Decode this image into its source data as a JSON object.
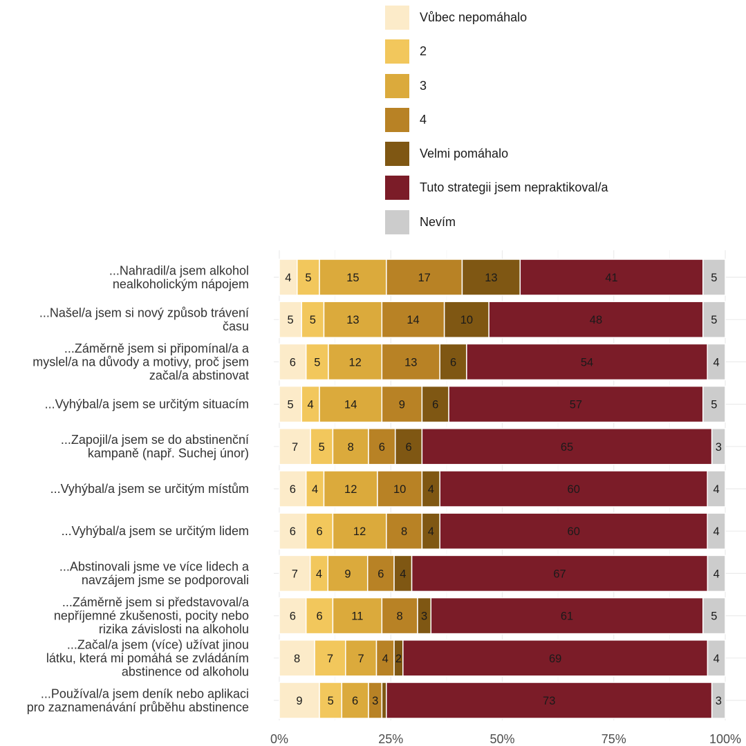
{
  "legend": [
    {
      "label": "Vůbec nepomáhalo",
      "color": "#fcebc9"
    },
    {
      "label": "2",
      "color": "#f2c75c"
    },
    {
      "label": "3",
      "color": "#dbaa3c"
    },
    {
      "label": "4",
      "color": "#b88225"
    },
    {
      "label": "Velmi pomáhalo",
      "color": "#7f5713"
    },
    {
      "label": "Tuto strategii jsem nepraktikoval/a",
      "color": "#7b1c28"
    },
    {
      "label": "Nevím",
      "color": "#cccccc"
    }
  ],
  "chart_data": {
    "type": "bar",
    "orientation": "horizontal",
    "stacked": true,
    "percent": true,
    "x_ticks": [
      "0%",
      "25%",
      "50%",
      "75%",
      "100%"
    ],
    "xlim": [
      0,
      100
    ],
    "grid": true,
    "legend_position": "top",
    "categories": [
      [
        "...Nahradil/a jsem alkohol",
        "nealkoholickým nápojem"
      ],
      [
        "...Našel/a jsem si nový způsob trávení",
        "času"
      ],
      [
        "...Záměrně jsem si připomínal/a a",
        "myslel/a na důvody a motivy, proč jsem",
        "začal/a abstinovat"
      ],
      [
        "...Vyhýbal/a jsem se určitým situacím"
      ],
      [
        "...Zapojil/a jsem se do abstinenční",
        "kampaně (např. Suchej únor)"
      ],
      [
        "...Vyhýbal/a jsem se určitým místům"
      ],
      [
        "...Vyhýbal/a jsem se určitým lidem"
      ],
      [
        "...Abstinovali jsme ve více lidech a",
        "navzájem jsme se podporovali"
      ],
      [
        "...Záměrně jsem si představoval/a",
        "nepříjemné zkušenosti, pocity nebo",
        "rizika závislosti na alkoholu"
      ],
      [
        "...Začal/a jsem (více) užívat jinou",
        "látku, která mi pomáhá se zvládáním",
        "abstinence od alkoholu"
      ],
      [
        "...Používal/a jsem deník nebo aplikaci",
        "pro zaznamenávání průběhu abstinence"
      ]
    ],
    "series": [
      {
        "name": "Vůbec nepomáhalo",
        "values": [
          4,
          5,
          6,
          5,
          7,
          6,
          6,
          7,
          6,
          8,
          9
        ]
      },
      {
        "name": "2",
        "values": [
          5,
          5,
          5,
          4,
          5,
          4,
          6,
          4,
          6,
          7,
          5
        ]
      },
      {
        "name": "3",
        "values": [
          15,
          13,
          12,
          14,
          8,
          12,
          12,
          9,
          11,
          7,
          6
        ]
      },
      {
        "name": "4",
        "values": [
          17,
          14,
          13,
          9,
          6,
          10,
          8,
          6,
          8,
          4,
          3
        ]
      },
      {
        "name": "Velmi pomáhalo",
        "values": [
          13,
          10,
          6,
          6,
          6,
          4,
          4,
          4,
          3,
          2,
          1
        ]
      },
      {
        "name": "Tuto strategii jsem nepraktikoval/a",
        "values": [
          41,
          48,
          54,
          57,
          65,
          60,
          60,
          67,
          61,
          69,
          73
        ]
      },
      {
        "name": "Nevím",
        "values": [
          5,
          5,
          4,
          5,
          3,
          4,
          4,
          4,
          5,
          4,
          3
        ]
      }
    ]
  }
}
